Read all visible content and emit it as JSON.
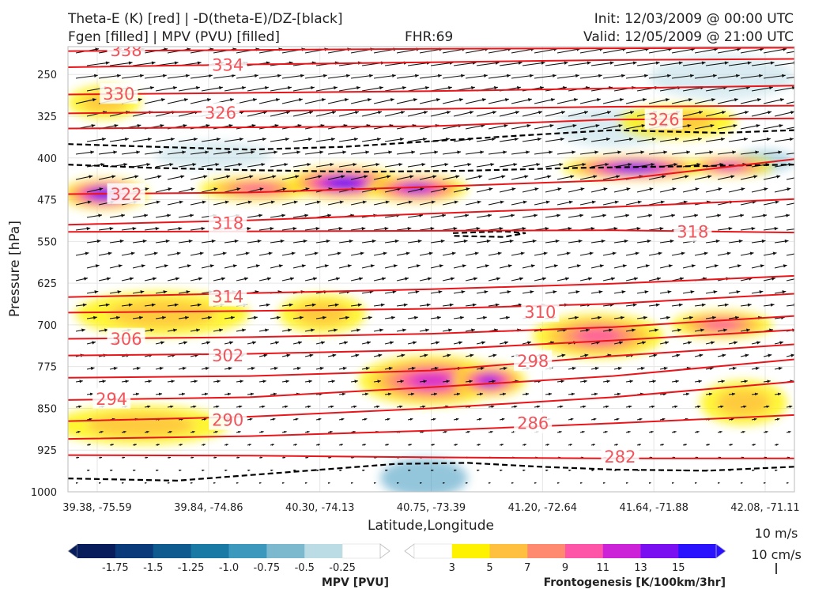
{
  "header": {
    "title_line1": "Theta-E (K) [red] | -D(theta-E)/DZ-[black]",
    "title_line2": "Fgen [filled] | MPV (PVU) [filled]",
    "fhr": "FHR:69",
    "init": "Init: 12/03/2009 @ 00:00 UTC",
    "valid": "Valid: 12/05/2009 @ 21:00 UTC"
  },
  "chart_data": {
    "type": "cross-section",
    "xlabel": "Latitude,Longitude",
    "ylabel": "Pressure [hPa]",
    "x_ticks": [
      "39.38, -75.59",
      "39.84, -74.86",
      "40.30, -74.13",
      "40.75, -73.39",
      "41.20, -72.64",
      "41.64, -71.88",
      "42.08, -71.11"
    ],
    "y_ticks": [
      250,
      325,
      400,
      475,
      550,
      625,
      700,
      775,
      850,
      925,
      1000
    ],
    "ylim": [
      1000,
      200
    ],
    "y_inverted": true,
    "grid": true,
    "theta_e_color": "#e8161b",
    "theta_e_contours": [
      {
        "label": "338",
        "p": [
          208,
          206,
          204,
          203,
          202
        ]
      },
      {
        "label": "334",
        "p": [
          237,
          232,
          228,
          224,
          222
        ]
      },
      {
        "label": "330",
        "p": [
          286,
          283,
          280,
          275,
          270
        ]
      },
      {
        "label": "326",
        "p": [
          320,
          316,
          312,
          308,
          306
        ]
      },
      {
        "label": "326",
        "p": [
          347,
          345,
          343,
          331,
          329
        ]
      },
      {
        "label": "322",
        "p": [
          465,
          462,
          452,
          440,
          402
        ]
      },
      {
        "label": "318",
        "p": [
          520,
          512,
          500,
          488,
          474
        ]
      },
      {
        "label": "318",
        "p": [
          533,
          532,
          531,
          530,
          534
        ]
      },
      {
        "label": "314",
        "p": [
          650,
          643,
          636,
          626,
          612
        ]
      },
      {
        "label": "310",
        "p": [
          678,
          675,
          671,
          662,
          644
        ]
      },
      {
        "label": "306",
        "p": [
          725,
          722,
          716,
          704,
          684
        ]
      },
      {
        "label": "302",
        "p": [
          755,
          752,
          745,
          728,
          709
        ]
      },
      {
        "label": "298",
        "p": [
          795,
          792,
          782,
          756,
          735
        ]
      },
      {
        "label": "294",
        "p": [
          835,
          830,
          812,
          792,
          762
        ]
      },
      {
        "label": "290",
        "p": [
          873,
          865,
          850,
          830,
          802
        ]
      },
      {
        "label": "286",
        "p": [
          905,
          900,
          890,
          877,
          862
        ]
      },
      {
        "label": "282",
        "p": [
          934,
          935,
          938,
          940,
          940
        ]
      }
    ],
    "theta_e_labels": [
      {
        "text": "338",
        "xi": 0.08,
        "p": 206
      },
      {
        "text": "334",
        "xi": 0.22,
        "p": 232
      },
      {
        "text": "330",
        "xi": 0.07,
        "p": 284
      },
      {
        "text": "326",
        "xi": 0.21,
        "p": 318
      },
      {
        "text": "326",
        "xi": 0.82,
        "p": 330
      },
      {
        "text": "322",
        "xi": 0.08,
        "p": 464
      },
      {
        "text": "318",
        "xi": 0.22,
        "p": 516
      },
      {
        "text": "318",
        "xi": 0.86,
        "p": 532
      },
      {
        "text": "314",
        "xi": 0.22,
        "p": 648
      },
      {
        "text": "310",
        "xi": 0.65,
        "p": 676
      },
      {
        "text": "306",
        "xi": 0.08,
        "p": 724
      },
      {
        "text": "302",
        "xi": 0.22,
        "p": 754
      },
      {
        "text": "298",
        "xi": 0.64,
        "p": 764
      },
      {
        "text": "294",
        "xi": 0.06,
        "p": 832
      },
      {
        "text": "290",
        "xi": 0.22,
        "p": 870
      },
      {
        "text": "286",
        "xi": 0.64,
        "p": 876
      },
      {
        "text": "282",
        "xi": 0.76,
        "p": 936
      }
    ],
    "stability_contours_color": "#000000",
    "stability_contours": [
      [
        [
          0.0,
          375
        ],
        [
          0.12,
          380
        ],
        [
          0.25,
          385
        ],
        [
          0.38,
          380
        ],
        [
          0.5,
          370
        ],
        [
          0.62,
          360
        ],
        [
          0.75,
          350
        ],
        [
          0.9,
          355
        ],
        [
          1.0,
          350
        ]
      ],
      [
        [
          0.0,
          412
        ],
        [
          0.12,
          418
        ],
        [
          0.25,
          422
        ],
        [
          0.4,
          425
        ],
        [
          0.55,
          423
        ],
        [
          0.7,
          418
        ],
        [
          0.85,
          415
        ],
        [
          1.0,
          412
        ]
      ],
      [
        [
          0.53,
          535
        ],
        [
          0.6,
          532
        ],
        [
          0.63,
          535
        ],
        [
          0.6,
          542
        ],
        [
          0.53,
          540
        ]
      ],
      [
        [
          0.0,
          976
        ],
        [
          0.15,
          980
        ],
        [
          0.25,
          970
        ],
        [
          0.35,
          960
        ],
        [
          0.45,
          950
        ],
        [
          0.55,
          948
        ],
        [
          0.65,
          955
        ],
        [
          0.75,
          960
        ],
        [
          0.88,
          962
        ],
        [
          1.0,
          955
        ]
      ]
    ],
    "frontogenesis_colorbar": {
      "title": "Frontogenesis [K/100km/3hr]",
      "ticks": [
        3,
        5,
        7,
        9,
        11,
        13,
        15
      ],
      "colors": [
        "#ffffff",
        "#fff200",
        "#ffc040",
        "#ff8a70",
        "#ff55a8",
        "#cc22d8",
        "#7a10f2",
        "#2a12ff"
      ]
    },
    "mpv_colorbar": {
      "title": "MPV [PVU]",
      "ticks": [
        -1.75,
        -1.5,
        -1.25,
        -1.0,
        -0.75,
        -0.5,
        -0.25
      ],
      "tick_labels": [
        "-1.75",
        "-1.5",
        "-1.25",
        "-1.0",
        "-0.75",
        "-0.5",
        "-0.25"
      ],
      "colors": [
        "#071d5c",
        "#0b3a7a",
        "#0f5a8f",
        "#1a7aa6",
        "#3d98bd",
        "#7cb9cf",
        "#bcdce5",
        "#ffffff"
      ]
    },
    "fgen_blobs": [
      {
        "xi": 0.05,
        "p": 465,
        "rx": 0.06,
        "rp": 28,
        "level": 15
      },
      {
        "xi": 0.26,
        "p": 455,
        "rx": 0.08,
        "rp": 22,
        "level": 9
      },
      {
        "xi": 0.38,
        "p": 445,
        "rx": 0.08,
        "rp": 30,
        "level": 15
      },
      {
        "xi": 0.48,
        "p": 455,
        "rx": 0.07,
        "rp": 25,
        "level": 13
      },
      {
        "xi": 0.78,
        "p": 418,
        "rx": 0.1,
        "rp": 22,
        "level": 15
      },
      {
        "xi": 0.91,
        "p": 415,
        "rx": 0.06,
        "rp": 18,
        "level": 11
      },
      {
        "xi": 0.5,
        "p": 800,
        "rx": 0.1,
        "rp": 45,
        "level": 11
      },
      {
        "xi": 0.58,
        "p": 800,
        "rx": 0.05,
        "rp": 30,
        "level": 13
      },
      {
        "xi": 0.73,
        "p": 720,
        "rx": 0.09,
        "rp": 40,
        "level": 9
      },
      {
        "xi": 0.9,
        "p": 700,
        "rx": 0.07,
        "rp": 25,
        "level": 9
      },
      {
        "xi": 0.13,
        "p": 680,
        "rx": 0.12,
        "rp": 40,
        "level": 5
      },
      {
        "xi": 0.35,
        "p": 680,
        "rx": 0.06,
        "rp": 35,
        "level": 5
      },
      {
        "xi": 0.1,
        "p": 880,
        "rx": 0.12,
        "rp": 35,
        "level": 5
      },
      {
        "xi": 0.84,
        "p": 335,
        "rx": 0.08,
        "rp": 30,
        "level": 5
      },
      {
        "xi": 0.05,
        "p": 300,
        "rx": 0.05,
        "rp": 30,
        "level": 5
      },
      {
        "xi": 0.93,
        "p": 840,
        "rx": 0.06,
        "rp": 40,
        "level": 5
      }
    ],
    "mpv_blobs": [
      {
        "xi": 0.9,
        "p": 255,
        "rx": 0.1,
        "rp": 40,
        "level": -0.25
      },
      {
        "xi": 0.49,
        "p": 975,
        "rx": 0.06,
        "rp": 35,
        "level": -0.75
      },
      {
        "xi": 0.75,
        "p": 345,
        "rx": 0.08,
        "rp": 35,
        "level": -0.25
      },
      {
        "xi": 0.96,
        "p": 405,
        "rx": 0.04,
        "rp": 20,
        "level": -0.5
      },
      {
        "xi": 0.2,
        "p": 395,
        "rx": 0.08,
        "rp": 25,
        "level": -0.25
      }
    ],
    "vector_reference": {
      "label1": "10 m/s",
      "label2": "10 cm/s"
    }
  }
}
